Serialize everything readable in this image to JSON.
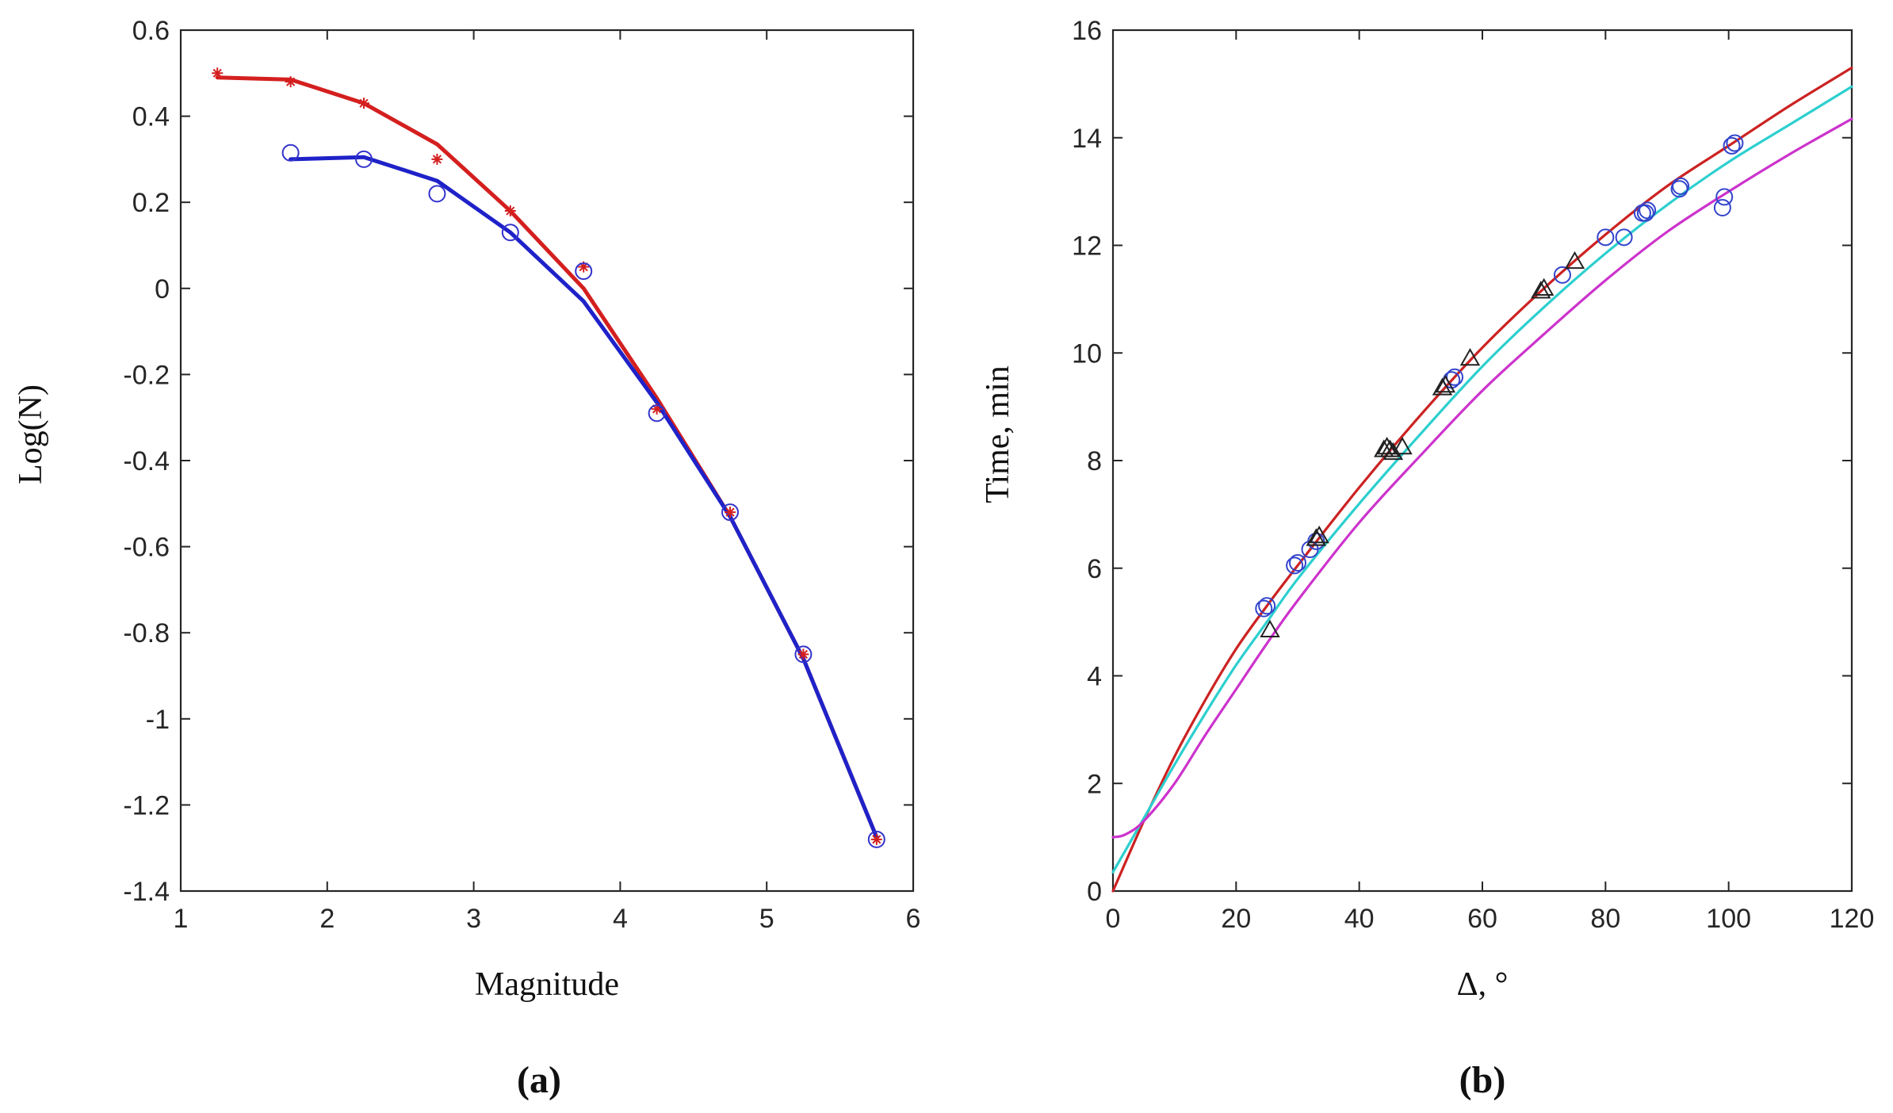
{
  "chart_data": [
    {
      "id": "a",
      "type": "line",
      "panel_label": "(a)",
      "title": "",
      "xlabel": "Magnitude",
      "ylabel": "Log(N)",
      "xlim": [
        1,
        6
      ],
      "ylim": [
        -1.4,
        0.6
      ],
      "xticks": [
        1,
        2,
        3,
        4,
        5,
        6
      ],
      "xtick_labels": [
        "1",
        "2",
        "3",
        "4",
        "5",
        "6"
      ],
      "yticks": [
        0.6,
        0.4,
        0.2,
        0,
        -0.2,
        -0.4,
        -0.6,
        -0.8,
        -1,
        -1.2,
        -1.4
      ],
      "ytick_labels": [
        "0.6",
        "0.4",
        "0.2",
        "0",
        "-0.2",
        "-0.4",
        "-0.6",
        "-0.8",
        "-1",
        "-1.2",
        "-1.4"
      ],
      "grid": false,
      "series": [
        {
          "name": "red-fit",
          "kind": "line",
          "color": "#d41f1f",
          "x": [
            1.25,
            1.75,
            2.25,
            2.75,
            3.25,
            3.75,
            4.25,
            4.75,
            5.25,
            5.75
          ],
          "y": [
            0.49,
            0.485,
            0.43,
            0.335,
            0.18,
            0.0,
            -0.255,
            -0.53,
            -0.86,
            -1.275
          ]
        },
        {
          "name": "blue-fit",
          "kind": "line",
          "color": "#1f22c8",
          "x": [
            1.75,
            2.25,
            2.75,
            3.25,
            3.75,
            4.25,
            4.75,
            5.25,
            5.75
          ],
          "y": [
            0.3,
            0.305,
            0.25,
            0.13,
            -0.03,
            -0.265,
            -0.53,
            -0.86,
            -1.275
          ]
        },
        {
          "name": "red-observed",
          "kind": "marker",
          "marker": "asterisk",
          "color": "#d41f1f",
          "x": [
            1.25,
            1.75,
            2.25,
            2.75,
            3.25,
            3.75,
            4.25,
            4.75,
            5.25,
            5.75
          ],
          "y": [
            0.5,
            0.48,
            0.43,
            0.3,
            0.18,
            0.05,
            -0.28,
            -0.52,
            -0.85,
            -1.28
          ]
        },
        {
          "name": "blue-observed",
          "kind": "marker",
          "marker": "circle",
          "color": "#3333cc",
          "x": [
            1.75,
            2.25,
            2.75,
            3.25,
            3.75,
            4.25,
            4.75,
            5.25,
            5.75
          ],
          "y": [
            0.315,
            0.3,
            0.22,
            0.13,
            0.04,
            -0.29,
            -0.52,
            -0.85,
            -1.28
          ]
        }
      ]
    },
    {
      "id": "b",
      "type": "line",
      "panel_label": "(b)",
      "title": "",
      "xlabel": "Δ, °",
      "ylabel": "Time, min",
      "xlim": [
        0,
        120
      ],
      "ylim": [
        0,
        16
      ],
      "xticks": [
        0,
        20,
        40,
        60,
        80,
        100,
        120
      ],
      "xtick_labels": [
        "0",
        "20",
        "40",
        "60",
        "80",
        "100",
        "120"
      ],
      "yticks": [
        0,
        2,
        4,
        6,
        8,
        10,
        12,
        14,
        16
      ],
      "ytick_labels": [
        "0",
        "2",
        "4",
        "6",
        "8",
        "10",
        "12",
        "14",
        "16"
      ],
      "grid": false,
      "series": [
        {
          "name": "red-curve",
          "kind": "line",
          "color": "#cc2222",
          "x": [
            0,
            5,
            10,
            15,
            20,
            25,
            30,
            40,
            50,
            60,
            70,
            80,
            90,
            100,
            110,
            120
          ],
          "y": [
            0,
            1.3,
            2.5,
            3.55,
            4.5,
            5.3,
            6.05,
            7.5,
            8.85,
            10.1,
            11.2,
            12.2,
            13.1,
            13.85,
            14.6,
            15.3
          ]
        },
        {
          "name": "cyan-curve",
          "kind": "line",
          "color": "#2ccfcf",
          "x": [
            0,
            5,
            10,
            15,
            20,
            25,
            30,
            40,
            50,
            60,
            70,
            80,
            90,
            100,
            110,
            120
          ],
          "y": [
            0.35,
            1.35,
            2.35,
            3.3,
            4.2,
            5.0,
            5.8,
            7.2,
            8.5,
            9.75,
            10.85,
            11.85,
            12.75,
            13.55,
            14.25,
            14.95
          ]
        },
        {
          "name": "magenta-curve",
          "kind": "line",
          "color": "#cc33cc",
          "x": [
            0,
            2,
            5,
            10,
            15,
            20,
            25,
            30,
            40,
            50,
            60,
            70,
            80,
            90,
            100,
            110,
            120
          ],
          "y": [
            1.0,
            1.05,
            1.3,
            2.0,
            2.9,
            3.75,
            4.6,
            5.4,
            6.85,
            8.1,
            9.3,
            10.35,
            11.35,
            12.25,
            13.0,
            13.7,
            14.35
          ]
        },
        {
          "name": "circles",
          "kind": "marker",
          "marker": "circle",
          "color": "#3344cc",
          "x": [
            24.5,
            25,
            29.5,
            30,
            32,
            33,
            55,
            55.5,
            73,
            80,
            83,
            86,
            86.5,
            86.8,
            92,
            92.2,
            99,
            99.3,
            100.5,
            101
          ],
          "y": [
            5.25,
            5.3,
            6.05,
            6.1,
            6.35,
            6.5,
            9.5,
            9.55,
            11.45,
            12.15,
            12.15,
            12.6,
            12.6,
            12.65,
            13.05,
            13.1,
            12.7,
            12.9,
            13.85,
            13.9
          ]
        },
        {
          "name": "triangles",
          "kind": "marker",
          "marker": "triangle",
          "color": "#222222",
          "x": [
            25.5,
            33,
            33.5,
            44,
            44.5,
            45,
            45.5,
            47,
            53.5,
            54,
            58,
            69.5,
            70,
            75
          ],
          "y": [
            4.85,
            6.55,
            6.6,
            8.2,
            8.25,
            8.2,
            8.15,
            8.25,
            9.35,
            9.4,
            9.9,
            11.15,
            11.2,
            11.7
          ]
        }
      ]
    }
  ]
}
